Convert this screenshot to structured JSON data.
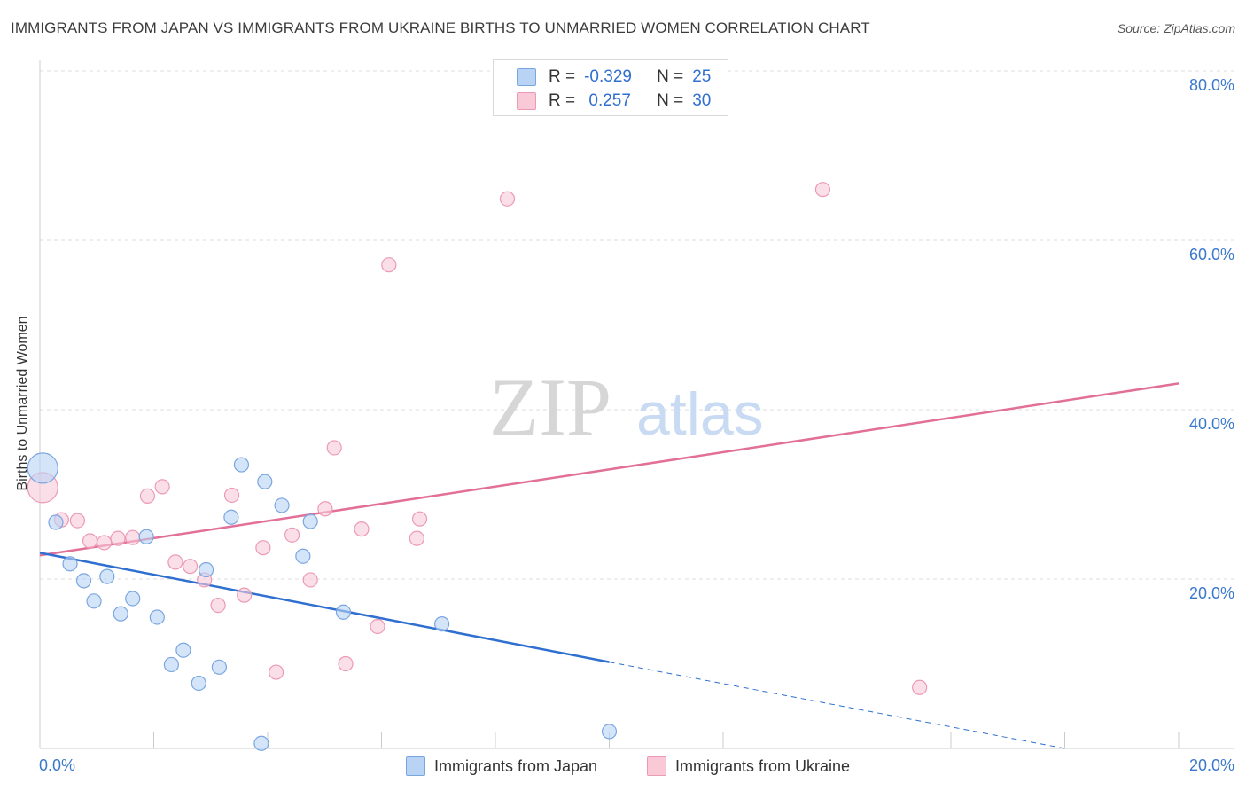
{
  "title": "IMMIGRANTS FROM JAPAN VS IMMIGRANTS FROM UKRAINE BIRTHS TO UNMARRIED WOMEN CORRELATION CHART",
  "source": "Source: ZipAtlas.com",
  "watermark": {
    "zip": "ZIP",
    "atlas": "atlas"
  },
  "legend": {
    "rows": [
      {
        "r_label": "R =",
        "r_value": "-0.329",
        "n_label": "N =",
        "n_value": "25"
      },
      {
        "r_label": "R =",
        "r_value": " 0.257",
        "n_label": "N =",
        "n_value": "30"
      }
    ]
  },
  "colors": {
    "japan_fill": "#b9d3f5",
    "japan_stroke": "#7aa6e0",
    "japan_line": "#2f6fd0",
    "ukraine_fill": "#f9c9d8",
    "ukraine_stroke": "#ec9ab4",
    "ukraine_line": "#e26f97",
    "tick": "#3a78cc",
    "grid": "#dddddd"
  },
  "chart_data": {
    "type": "scatter",
    "title": "IMMIGRANTS FROM JAPAN VS IMMIGRANTS FROM UKRAINE BIRTHS TO UNMARRIED WOMEN CORRELATION CHART",
    "xlabel": "",
    "ylabel": "Births to Unmarried Women",
    "xlim": [
      0,
      20
    ],
    "ylim": [
      0,
      80
    ],
    "x_ticks": [
      "0.0%",
      "20.0%"
    ],
    "y_ticks": [
      "20.0%",
      "40.0%",
      "60.0%",
      "80.0%"
    ],
    "series": [
      {
        "name": "Immigrants from Japan",
        "r": -0.329,
        "n": 25,
        "points": [
          [
            0.05,
            33.1
          ],
          [
            0.28,
            26.7
          ],
          [
            0.53,
            21.8
          ],
          [
            0.77,
            19.8
          ],
          [
            0.95,
            17.4
          ],
          [
            1.18,
            20.3
          ],
          [
            1.42,
            15.9
          ],
          [
            1.63,
            17.7
          ],
          [
            1.87,
            25.0
          ],
          [
            2.06,
            15.5
          ],
          [
            2.31,
            9.9
          ],
          [
            2.52,
            11.6
          ],
          [
            2.79,
            7.7
          ],
          [
            2.92,
            21.1
          ],
          [
            3.15,
            9.6
          ],
          [
            3.36,
            27.3
          ],
          [
            3.54,
            33.5
          ],
          [
            3.89,
            0.6
          ],
          [
            3.95,
            31.5
          ],
          [
            4.25,
            28.7
          ],
          [
            4.62,
            22.7
          ],
          [
            4.75,
            26.8
          ],
          [
            5.33,
            16.1
          ],
          [
            7.06,
            14.7
          ],
          [
            10.0,
            2.0
          ]
        ],
        "trend": {
          "x0": 0,
          "y0": 23.1,
          "x1": 10.0,
          "y1": 10.2,
          "dash_to_x": 18.0,
          "dash_to_y": 0
        }
      },
      {
        "name": "Immigrants from Ukraine",
        "r": 0.257,
        "n": 30,
        "points": [
          [
            0.05,
            30.8
          ],
          [
            0.38,
            27.0
          ],
          [
            0.66,
            26.9
          ],
          [
            0.88,
            24.5
          ],
          [
            1.13,
            24.3
          ],
          [
            1.37,
            24.8
          ],
          [
            1.63,
            24.9
          ],
          [
            1.89,
            29.8
          ],
          [
            2.15,
            30.9
          ],
          [
            2.38,
            22.0
          ],
          [
            2.64,
            21.5
          ],
          [
            2.89,
            19.9
          ],
          [
            3.13,
            16.9
          ],
          [
            3.37,
            29.9
          ],
          [
            3.59,
            18.1
          ],
          [
            3.92,
            23.7
          ],
          [
            4.15,
            9.0
          ],
          [
            4.43,
            25.2
          ],
          [
            4.75,
            19.9
          ],
          [
            5.01,
            28.3
          ],
          [
            5.17,
            35.5
          ],
          [
            5.37,
            10.0
          ],
          [
            5.65,
            25.9
          ],
          [
            5.93,
            14.4
          ],
          [
            6.13,
            57.1
          ],
          [
            6.62,
            24.8
          ],
          [
            6.67,
            27.1
          ],
          [
            8.21,
            64.9
          ],
          [
            13.75,
            66.0
          ],
          [
            15.45,
            7.2
          ]
        ],
        "trend": {
          "x0": 0,
          "y0": 22.8,
          "x1": 20.0,
          "y1": 43.1
        }
      }
    ]
  },
  "bottom_legend": [
    "Immigrants from Japan",
    "Immigrants from Ukraine"
  ]
}
